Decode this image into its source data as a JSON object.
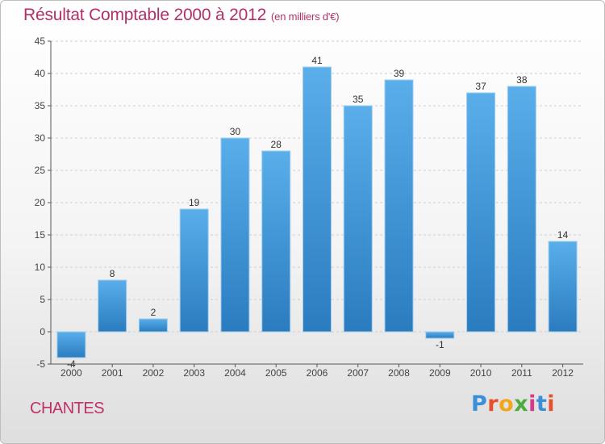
{
  "title": "Résultat Comptable 2000 à 2012",
  "title_unit": "(en milliers d'€)",
  "commune": "CHANTES",
  "logo": {
    "letters": [
      {
        "ch": "P",
        "color": "#3a8fd8"
      },
      {
        "ch": "r",
        "color": "#e6502a"
      },
      {
        "ch": "o",
        "color": "#f3a51d"
      },
      {
        "ch": "x",
        "color": "#4eab3d"
      },
      {
        "ch": "i",
        "color": "#d63a8b"
      },
      {
        "ch": "t",
        "color": "#3a8fd8"
      },
      {
        "ch": "i",
        "color": "#e6502a"
      }
    ]
  },
  "colors": {
    "bar_top": "#5aaeea",
    "bar_bottom": "#2a7cbf",
    "title": "#b0306a",
    "grid": "#cfcfcf",
    "axis": "#555555"
  },
  "chart_data": {
    "type": "bar",
    "title": "Résultat Comptable 2000 à 2012",
    "subtitle": "(en milliers d'€)",
    "categories": [
      "2000",
      "2001",
      "2002",
      "2003",
      "2004",
      "2005",
      "2006",
      "2007",
      "2008",
      "2009",
      "2010",
      "2011",
      "2012"
    ],
    "values": [
      -4,
      8,
      2,
      19,
      30,
      28,
      41,
      35,
      39,
      -1,
      37,
      38,
      14
    ],
    "ylim": [
      -5,
      45
    ],
    "yticks": [
      -5,
      0,
      5,
      10,
      15,
      20,
      25,
      30,
      35,
      40,
      45
    ],
    "grid": true,
    "legend": "none"
  }
}
